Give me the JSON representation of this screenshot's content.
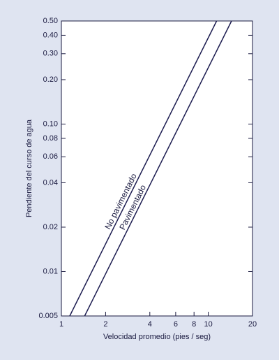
{
  "chart_data": {
    "type": "line",
    "x_label": "Velocidad promedio (pies / seg)",
    "y_label": "Pendiente del curso de agua",
    "xscale": "log",
    "yscale": "log",
    "xlim": [
      1,
      20
    ],
    "ylim": [
      0.005,
      0.5
    ],
    "xticks": [
      1,
      2,
      4,
      6,
      8,
      10,
      20
    ],
    "yticks": [
      {
        "value": 0.5,
        "label": "0.50"
      },
      {
        "value": 0.4,
        "label": "0.40"
      },
      {
        "value": 0.3,
        "label": "0.30"
      },
      {
        "value": 0.2,
        "label": "0.20"
      },
      {
        "value": 0.1,
        "label": "0.10"
      },
      0.08,
      0.06,
      0.04,
      0.02,
      0.01,
      0.005
    ],
    "series": [
      {
        "name": "No pavimentado",
        "color": "#1c1c50",
        "x": [
          1.14,
          11.4
        ],
        "values": [
          0.005,
          0.5
        ]
      },
      {
        "name": "Pavimentado",
        "color": "#1c1c50",
        "x": [
          1.44,
          14.4
        ],
        "values": [
          0.005,
          0.5
        ]
      }
    ]
  }
}
